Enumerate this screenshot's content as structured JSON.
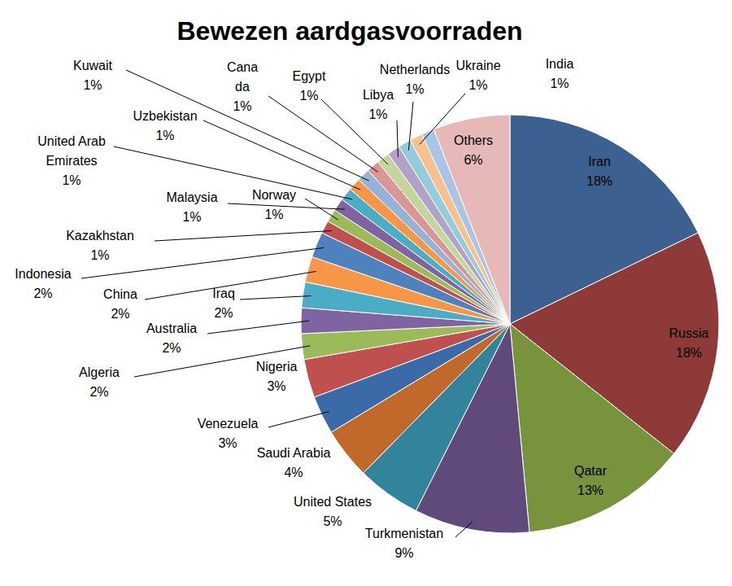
{
  "chart_data": {
    "type": "pie",
    "title": "Bewezen aardgasvoorraden",
    "categories": [
      "Iran",
      "Russia",
      "Qatar",
      "Turkmenistan",
      "United States",
      "Saudi Arabia",
      "Venezuela",
      "Nigeria",
      "Algeria",
      "Australia",
      "Iraq",
      "China",
      "Indonesia",
      "Kazakhstan",
      "Norway",
      "Malaysia",
      "United Arab Emirates",
      "Uzbekistan",
      "Kuwait",
      "Canada",
      "Egypt",
      "Libya",
      "Netherlands",
      "Ukraine",
      "India",
      "Others"
    ],
    "values": [
      18,
      18,
      13,
      9,
      5,
      4,
      3,
      3,
      2,
      2,
      2,
      2,
      2,
      1,
      1,
      1,
      1,
      1,
      1,
      1,
      1,
      1,
      1,
      1,
      1,
      6
    ],
    "value_labels": [
      "18%",
      "18%",
      "13%",
      "9%",
      "5%",
      "4%",
      "3%",
      "3%",
      "2%",
      "2%",
      "2%",
      "2%",
      "2%",
      "1%",
      "1%",
      "1%",
      "1%",
      "1%",
      "1%",
      "1%",
      "1%",
      "1%",
      "1%",
      "1%",
      "1%",
      "6%"
    ],
    "colors": [
      "#3c6191",
      "#8e3a38",
      "#77933c",
      "#5f4a7b",
      "#31849b",
      "#c0692b",
      "#3a6aa8",
      "#c0504d",
      "#9bbb59",
      "#8064a2",
      "#4bacc6",
      "#f79646",
      "#4f81bd",
      "#c0504d",
      "#9bbb59",
      "#8064a2",
      "#4bacc6",
      "#f79646",
      "#95b3d7",
      "#d99694",
      "#c3d69b",
      "#b3a2c7",
      "#93cddd",
      "#fac090",
      "#a9c4e4",
      "#e6b9b8"
    ],
    "data_labels": true
  }
}
